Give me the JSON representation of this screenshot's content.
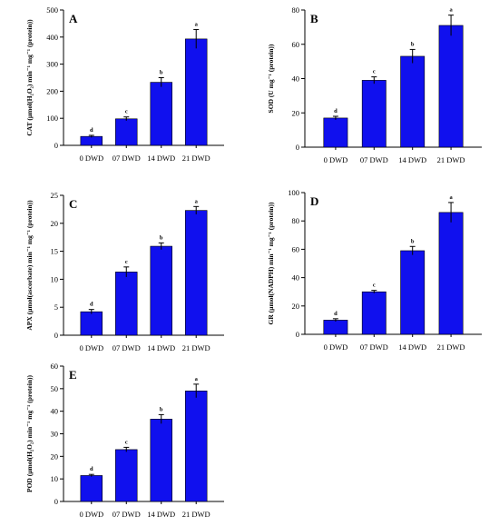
{
  "figure": {
    "colors": {
      "bar": "#1010ee",
      "bar_stroke": "#000000",
      "axis": "#000000"
    }
  },
  "chart_data": [
    {
      "panel": "A",
      "type": "bar",
      "ylabel": "CAT (µmol(H₂O₂) min⁻¹ mg⁻¹ (protein))",
      "categories": [
        "0 DWD",
        "07 DWD",
        "14 DWD",
        "21 DWD"
      ],
      "values": [
        33,
        98,
        233,
        393
      ],
      "errors": [
        4,
        7,
        17,
        35
      ],
      "significance": [
        "d",
        "c",
        "b",
        "a"
      ],
      "ylim": [
        0,
        500
      ],
      "yticks": [
        0,
        100,
        200,
        300,
        400,
        500
      ],
      "grid": false
    },
    {
      "panel": "B",
      "type": "bar",
      "ylabel": "SOD (U mg⁻¹ (protein))",
      "categories": [
        "0 DWD",
        "07 DWD",
        "14 DWD",
        "21 DWD"
      ],
      "values": [
        17,
        39,
        53,
        71
      ],
      "errors": [
        1,
        2,
        4,
        6
      ],
      "significance": [
        "d",
        "c",
        "b",
        "a"
      ],
      "ylim": [
        0,
        80
      ],
      "yticks": [
        0,
        20,
        40,
        60,
        80
      ],
      "grid": false
    },
    {
      "panel": "C",
      "type": "bar",
      "ylabel": "APX (µmol(ascorbate) min⁻¹ mg⁻¹ (protein))",
      "categories": [
        "0 DWD",
        "07 DWD",
        "14 DWD",
        "21 DWD"
      ],
      "values": [
        4.2,
        11.3,
        15.9,
        22.3
      ],
      "errors": [
        0.4,
        0.9,
        0.6,
        0.7
      ],
      "significance": [
        "d",
        "c",
        "b",
        "a"
      ],
      "ylim": [
        0,
        25
      ],
      "yticks": [
        0,
        5,
        10,
        15,
        20,
        25
      ],
      "grid": false
    },
    {
      "panel": "D",
      "type": "bar",
      "ylabel": "GR (µmol(NADPH) min⁻¹ mg⁻¹ (protein))",
      "categories": [
        "0 DWD",
        "07 DWD",
        "14 DWD",
        "21 DWD"
      ],
      "values": [
        10,
        30,
        59,
        86
      ],
      "errors": [
        1,
        1,
        3,
        7
      ],
      "significance": [
        "d",
        "c",
        "b",
        "a"
      ],
      "ylim": [
        0,
        100
      ],
      "yticks": [
        0,
        20,
        40,
        60,
        80,
        100
      ],
      "grid": false
    },
    {
      "panel": "E",
      "type": "bar",
      "ylabel": "POD (µmol(H₂O₂) min⁻¹ mg⁻¹ (protein))",
      "categories": [
        "0 DWD",
        "07 DWD",
        "14 DWD",
        "21 DWD"
      ],
      "values": [
        11.5,
        23,
        36.5,
        49
      ],
      "errors": [
        0.5,
        1,
        2,
        3
      ],
      "significance": [
        "d",
        "c",
        "b",
        "a"
      ],
      "ylim": [
        0,
        60
      ],
      "yticks": [
        0,
        10,
        20,
        30,
        40,
        50,
        60
      ],
      "grid": false
    }
  ]
}
